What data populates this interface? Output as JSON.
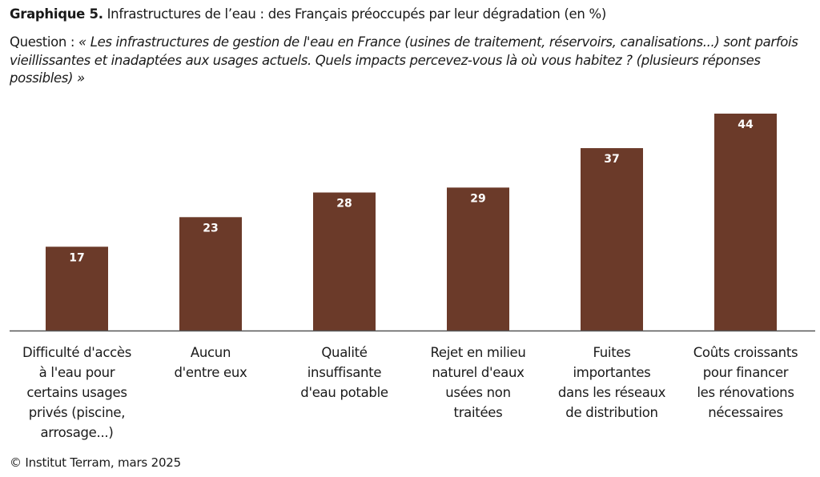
{
  "title_bold": "Graphique 5.",
  "title_rest": " Infrastructures de l’eau : des Français préoccupés par leur dégradation (en %)",
  "question_label": "Question : ",
  "question_text": "« Les infrastructures de gestion de l'eau en France (usines de traitement, réservoirs, canalisations...) sont parfois vieillissantes et inadaptées aux usages actuels. Quels impacts percevez-vous là où vous habitez ? (plusieurs réponses possibles) »",
  "source": "© Institut Terram, mars 2025",
  "colors": {
    "bar": "#6b3a29",
    "label": "#ffffff",
    "axis": "#555555"
  },
  "chart_data": {
    "type": "bar",
    "title": "Infrastructures de l’eau : des Français préoccupés par leur dégradation (en %)",
    "xlabel": "",
    "ylabel": "",
    "ylim": [
      0,
      46
    ],
    "grid": false,
    "categories": [
      "Difficulté d'accès à l'eau pour certains usages privés (piscine, arrosage...)",
      "Aucun d'entre eux",
      "Qualité insuffisante d'eau potable",
      "Rejet en milieu naturel d'eaux usées non traitées",
      "Fuites importantes dans les réseaux de distribution",
      "Coûts croissants pour financer les rénovations nécessaires"
    ],
    "values": [
      17,
      23,
      28,
      29,
      37,
      44
    ],
    "data_labels": [
      "17",
      "23",
      "28",
      "29",
      "37",
      "44"
    ]
  }
}
